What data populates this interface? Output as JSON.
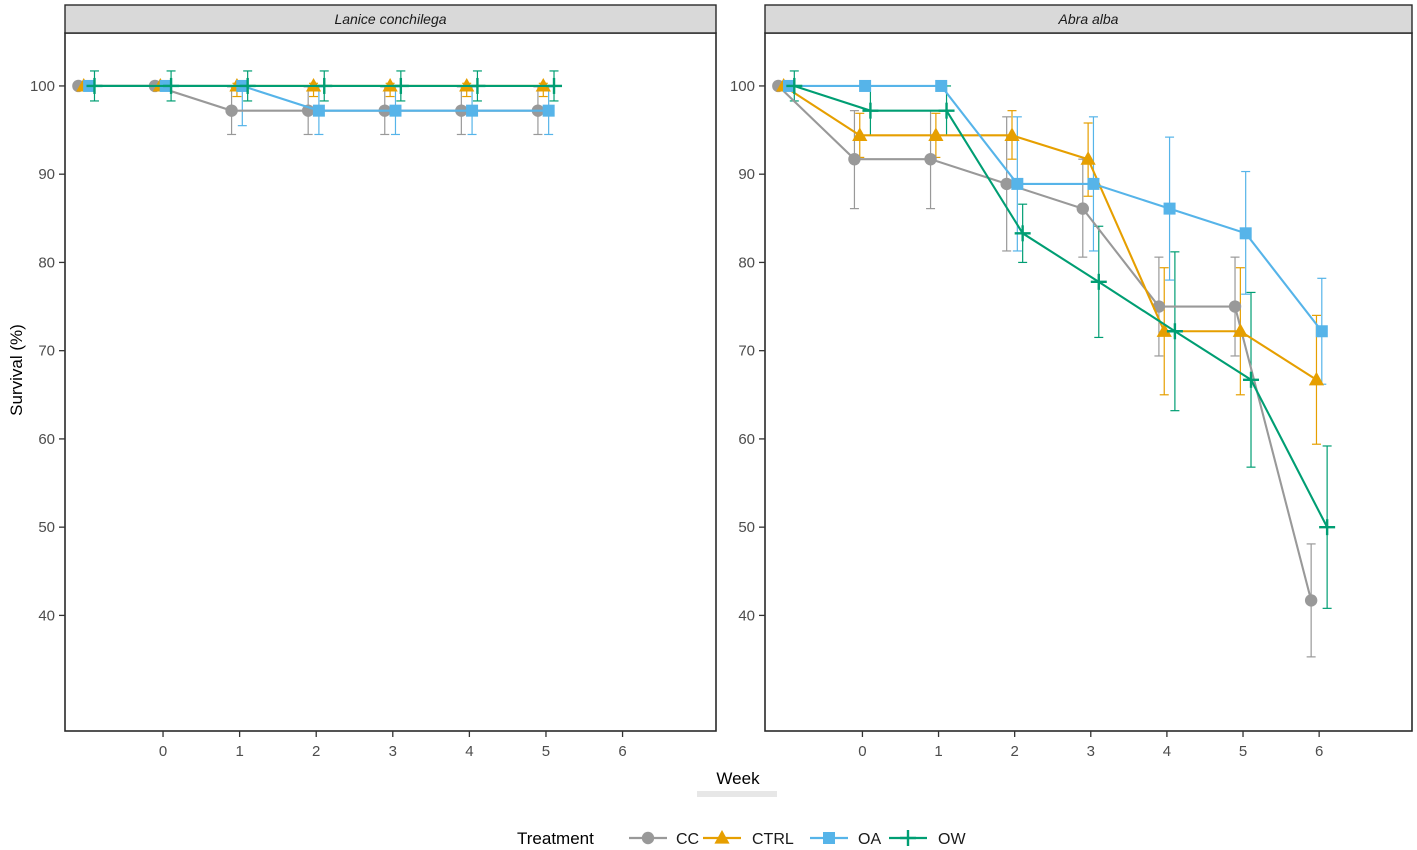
{
  "chart_data": {
    "type": "line",
    "title": "",
    "xlabel": "Week",
    "ylabel": "Survival (%)",
    "xlim": [
      -1.28,
      7.22
    ],
    "ylim": [
      26.9,
      106
    ],
    "xticks": [
      0,
      1,
      2,
      3,
      4,
      5,
      6
    ],
    "yticks": [
      100,
      90,
      80,
      70,
      60,
      50,
      40
    ],
    "grid": false,
    "legend": {
      "title": "Treatment",
      "position": "bottom",
      "entries": [
        {
          "label": "CC",
          "marker": "circle",
          "color": "#999999"
        },
        {
          "label": "CTRL",
          "marker": "triangle",
          "color": "#E69F00"
        },
        {
          "label": "OA",
          "marker": "square",
          "color": "#56B4E9"
        },
        {
          "label": "OW",
          "marker": "plus",
          "color": "#009E73"
        }
      ]
    },
    "facets": [
      {
        "label": "Lanice conchilega",
        "series": [
          {
            "name": "CC",
            "marker": "circle",
            "color": "#999999",
            "x": [
              -1,
              0,
              1,
              2,
              3,
              4,
              5
            ],
            "y": [
              100,
              100,
              97.2,
              97.2,
              97.2,
              97.2,
              97.2
            ],
            "err_lo": [
              null,
              null,
              94.5,
              94.5,
              94.5,
              94.5,
              94.5
            ],
            "err_hi": [
              null,
              null,
              99.9,
              99.9,
              99.9,
              99.9,
              99.9
            ]
          },
          {
            "name": "CTRL",
            "marker": "triangle",
            "color": "#E69F00",
            "x": [
              -1,
              0,
              1,
              2,
              3,
              4,
              5
            ],
            "y": [
              100,
              100,
              100,
              100,
              100,
              100,
              100
            ],
            "err_lo": [
              null,
              null,
              98.8,
              98.8,
              98.8,
              98.8,
              98.8
            ],
            "err_hi": [
              null,
              null,
              100.3,
              100.3,
              100.3,
              100.3,
              100.3
            ]
          },
          {
            "name": "OA",
            "marker": "square",
            "color": "#56B4E9",
            "x": [
              -1,
              0,
              1,
              2,
              3,
              4,
              5
            ],
            "y": [
              100,
              100,
              100,
              97.2,
              97.2,
              97.2,
              97.2
            ],
            "err_lo": [
              null,
              null,
              95.5,
              94.5,
              94.5,
              94.5,
              94.5
            ],
            "err_hi": [
              null,
              null,
              100.4,
              99.9,
              99.9,
              99.9,
              99.9
            ]
          },
          {
            "name": "OW",
            "marker": "plus",
            "color": "#009E73",
            "x": [
              -1,
              0,
              1,
              2,
              3,
              4,
              5
            ],
            "y": [
              100,
              100,
              100,
              100,
              100,
              100,
              100
            ],
            "err_lo": [
              98.3,
              98.3,
              98.3,
              98.3,
              98.3,
              98.3,
              98.3
            ],
            "err_hi": [
              101.7,
              101.7,
              101.7,
              101.7,
              101.7,
              101.7,
              101.7
            ]
          }
        ]
      },
      {
        "label": "Abra alba",
        "series": [
          {
            "name": "CC",
            "marker": "circle",
            "color": "#999999",
            "x": [
              -1,
              0,
              1,
              2,
              3,
              4,
              5,
              6
            ],
            "y": [
              100,
              91.7,
              91.7,
              88.9,
              86.1,
              75,
              75,
              41.7
            ],
            "err_lo": [
              null,
              86.1,
              86.1,
              81.3,
              80.6,
              69.4,
              69.4,
              35.3
            ],
            "err_hi": [
              null,
              97.2,
              97.2,
              96.5,
              91.7,
              80.6,
              80.6,
              48.1
            ]
          },
          {
            "name": "CTRL",
            "marker": "triangle",
            "color": "#E69F00",
            "x": [
              -1,
              0,
              1,
              2,
              3,
              4,
              5,
              6
            ],
            "y": [
              100,
              94.4,
              94.4,
              94.4,
              91.7,
              72.2,
              72.2,
              66.7
            ],
            "err_lo": [
              null,
              91.9,
              91.9,
              91.7,
              87.5,
              65,
              65,
              59.4
            ],
            "err_hi": [
              null,
              96.9,
              96.9,
              97.2,
              95.8,
              79.4,
              79.4,
              74
            ]
          },
          {
            "name": "OA",
            "marker": "square",
            "color": "#56B4E9",
            "x": [
              -1,
              0,
              1,
              2,
              3,
              4,
              5,
              6
            ],
            "y": [
              100,
              100,
              100,
              88.9,
              88.9,
              86.1,
              83.3,
              72.2
            ],
            "err_lo": [
              null,
              null,
              null,
              81.3,
              81.3,
              78,
              76.4,
              66.2
            ],
            "err_hi": [
              null,
              null,
              null,
              96.5,
              96.5,
              94.2,
              90.3,
              78.2
            ]
          },
          {
            "name": "OW",
            "marker": "plus",
            "color": "#009E73",
            "x": [
              -1,
              0,
              1,
              2,
              3,
              4,
              5,
              6
            ],
            "y": [
              100,
              97.2,
              97.2,
              83.3,
              77.8,
              72.2,
              66.7,
              50
            ],
            "err_lo": [
              98.3,
              94.4,
              94.4,
              80,
              71.5,
              63.2,
              56.8,
              40.8
            ],
            "err_hi": [
              101.7,
              100,
              100,
              86.6,
              84.1,
              81.2,
              76.6,
              59.2
            ]
          }
        ]
      }
    ],
    "style": {
      "strip_bg": "#d9d9d9",
      "panel_border": "#2a2a2a",
      "tick_label_color": "#4d4d4d",
      "axis_title_color": "#000000",
      "strip_text_color": "#1a1a1a"
    }
  }
}
